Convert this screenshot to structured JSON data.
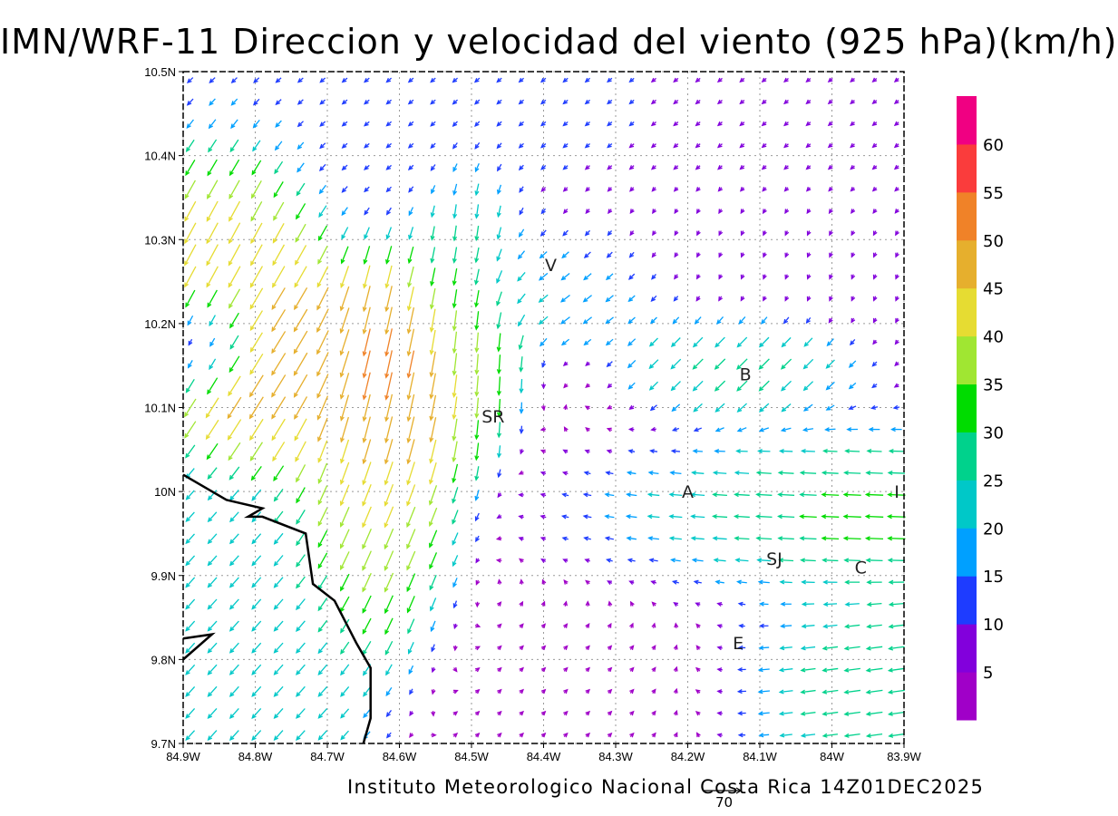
{
  "title": "IMN/WRF-11 Direccion y velocidad del viento (925 hPa)(km/h)",
  "footer": "Instituto Meteorologico Nacional Costa Rica 14Z01DEC2025",
  "reference_vector_label": "70",
  "chart_data": {
    "type": "vector_field",
    "title": "IMN/WRF-11 Direccion y velocidad del viento (925 hPa)(km/h)",
    "units": "km/h",
    "level": "925 hPa",
    "valid_time": "14Z01DEC2025",
    "reference_vector": 70,
    "x_ticks": [
      "84.9W",
      "84.8W",
      "84.7W",
      "84.6W",
      "84.5W",
      "84.4W",
      "84.3W",
      "84.2W",
      "84.1W",
      "84W",
      "83.9W"
    ],
    "y_ticks": [
      "10.5N",
      "10.4N",
      "10.3N",
      "10.2N",
      "10.1N",
      "10N",
      "9.9N",
      "9.8N",
      "9.7N"
    ],
    "xlim": [
      -84.9,
      -83.9
    ],
    "ylim": [
      9.7,
      10.5
    ],
    "grid": true,
    "colorbar": {
      "levels": [
        5,
        10,
        15,
        20,
        25,
        30,
        35,
        40,
        45,
        50,
        55,
        60
      ],
      "colors": [
        "#a000c8",
        "#8200dc",
        "#1e3cff",
        "#00a0ff",
        "#00c8c8",
        "#00d28c",
        "#00dc00",
        "#a0e632",
        "#e6dc32",
        "#e6af2d",
        "#f08228",
        "#fa3c3c",
        "#f00082"
      ]
    },
    "stations": [
      {
        "label": "V",
        "lon": -84.39,
        "lat": 10.27
      },
      {
        "label": "B",
        "lon": -84.12,
        "lat": 10.14
      },
      {
        "label": "SR",
        "lon": -84.47,
        "lat": 10.09
      },
      {
        "label": "A",
        "lon": -84.2,
        "lat": 10.0
      },
      {
        "label": "I",
        "lon": -83.91,
        "lat": 10.0
      },
      {
        "label": "SJ",
        "lon": -84.08,
        "lat": 9.92
      },
      {
        "label": "C",
        "lon": -83.96,
        "lat": 9.91
      },
      {
        "label": "E",
        "lon": -84.13,
        "lat": 9.82
      }
    ],
    "coastline": [
      [
        -84.9,
        10.02
      ],
      [
        -84.84,
        9.99
      ],
      [
        -84.79,
        9.98
      ],
      [
        -84.81,
        9.97
      ],
      [
        -84.79,
        9.97
      ],
      [
        -84.73,
        9.95
      ],
      [
        -84.72,
        9.89
      ],
      [
        -84.69,
        9.87
      ],
      [
        -84.66,
        9.82
      ],
      [
        -84.64,
        9.79
      ],
      [
        -84.64,
        9.73
      ],
      [
        -84.65,
        9.7
      ]
    ],
    "peninsula_line": [
      [
        -84.9,
        9.825
      ],
      [
        -84.86,
        9.83
      ],
      [
        -84.9,
        9.8
      ]
    ],
    "wind_regions": [
      {
        "name": "north_weak_NE",
        "lon": [
          -84.9,
          -83.9
        ],
        "lat": [
          10.34,
          10.5
        ],
        "direction_to_deg": 225,
        "speed_kmh": [
          10,
          22
        ]
      },
      {
        "name": "northwest_strong_SW",
        "lon": [
          -84.9,
          -84.75
        ],
        "lat": [
          10.22,
          10.4
        ],
        "direction_to_deg": 210,
        "speed_kmh": [
          30,
          50
        ]
      },
      {
        "name": "central_N_jet",
        "lon": [
          -84.68,
          -84.42
        ],
        "lat": [
          9.9,
          10.34
        ],
        "direction_to_deg": 190,
        "speed_kmh": [
          30,
          60
        ]
      },
      {
        "name": "eastern_easterly",
        "lon": [
          -84.3,
          -83.9
        ],
        "lat": [
          9.72,
          10.02
        ],
        "direction_to_deg": 270,
        "speed_kmh": [
          20,
          40
        ]
      },
      {
        "name": "southwest_SW",
        "lon": [
          -84.9,
          -84.68
        ],
        "lat": [
          9.7,
          10.1
        ],
        "direction_to_deg": 220,
        "speed_kmh": [
          15,
          35
        ]
      },
      {
        "name": "calm_central",
        "lon": [
          -84.45,
          -84.1
        ],
        "lat": [
          9.72,
          10.12
        ],
        "direction_to_deg": 45,
        "speed_kmh": [
          3,
          10
        ]
      }
    ]
  }
}
